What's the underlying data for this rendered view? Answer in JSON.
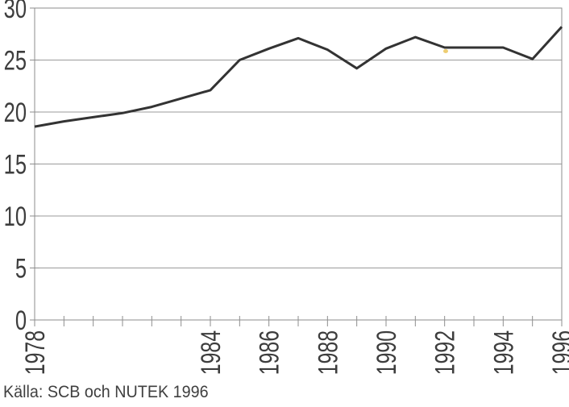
{
  "chart_data": {
    "type": "line",
    "title": "",
    "xlabel": "",
    "ylabel": "",
    "x": [
      1978,
      1979,
      1980,
      1981,
      1982,
      1983,
      1984,
      1985,
      1986,
      1987,
      1988,
      1989,
      1990,
      1991,
      1992,
      1993,
      1994,
      1995,
      1996
    ],
    "series": [
      {
        "name": "series-1",
        "values": [
          18.6,
          19.1,
          19.5,
          19.9,
          20.5,
          21.3,
          22.1,
          25.0,
          26.1,
          27.1,
          26.0,
          24.2,
          26.1,
          27.2,
          26.2,
          26.2,
          26.2,
          25.1,
          28.2
        ]
      }
    ],
    "ylim": [
      0,
      30
    ],
    "yticks": [
      0,
      5,
      10,
      15,
      20,
      25,
      30
    ],
    "xticks_every_year": true,
    "xtick_labels_shown": [
      "1978",
      "1984",
      "1986",
      "1988",
      "1990",
      "1992",
      "1994",
      "1996"
    ],
    "xtick_label_rotation_deg": -90,
    "grid": "horizontal",
    "legend": "none",
    "plot_border": true,
    "colors": {
      "line": "#333333",
      "grid": "#9b9b9b",
      "axis": "#8e8e8e",
      "labels": "#3d3d3d",
      "background": "#ffffff",
      "scan_speck": "#e9c14f"
    }
  },
  "caption": {
    "text": "Källa: SCB och NUTEK 1996"
  }
}
